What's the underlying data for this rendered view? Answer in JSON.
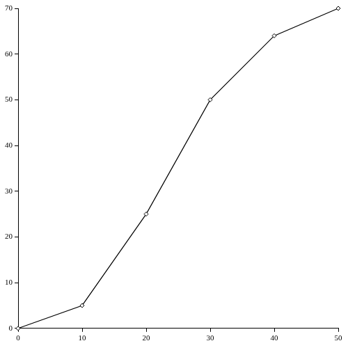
{
  "chart_data": {
    "type": "line",
    "x": [
      0,
      10,
      20,
      30,
      40,
      50
    ],
    "series": [
      {
        "values": [
          0,
          5,
          25,
          50,
          64,
          70
        ],
        "color": "#000000",
        "marker": "diamond",
        "line_style": "solid"
      }
    ],
    "xlim": [
      0,
      50
    ],
    "xticks": [
      0,
      10,
      20,
      30,
      40,
      50
    ],
    "ylim": [
      0,
      70
    ],
    "yticks": [
      0,
      10,
      20,
      30,
      40,
      50,
      60,
      70
    ],
    "grid": false
  }
}
